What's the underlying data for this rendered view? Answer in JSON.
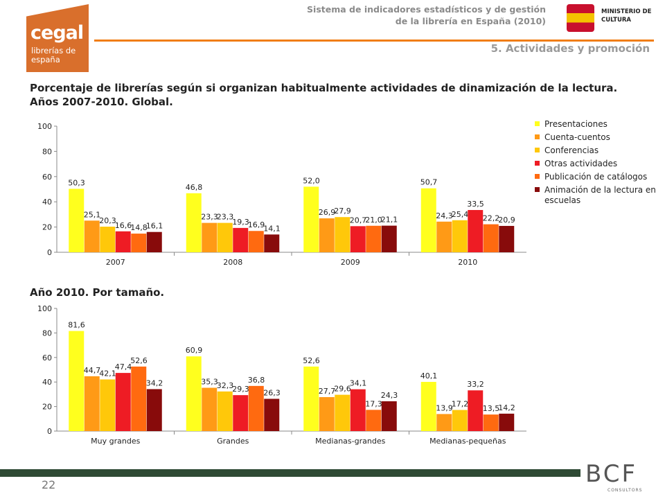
{
  "header": {
    "logo_name": "cegal",
    "logo_sub": "librerías de españa",
    "system_line1": "Sistema de indicadores estadísticos y de gestión",
    "system_line2": "de la librería en España (2010)",
    "ministry": "MINISTERIO DE CULTURA",
    "section": "5. Actividades y promoción"
  },
  "footer": {
    "page": "22",
    "brand": "BCF",
    "brand_sub": "CONSULTORS"
  },
  "series_colors": [
    "#ffff1e",
    "#ff9a16",
    "#ffc80a",
    "#ee1c24",
    "#ff6a10",
    "#880b0b"
  ],
  "chart_data": [
    {
      "type": "bar",
      "title": "Porcentaje de librerías según si organizan habitualmente actividades de dinamización de la lectura. Años 2007-2010. Global.",
      "categories": [
        "2007",
        "2008",
        "2009",
        "2010"
      ],
      "ylim": [
        0,
        100
      ],
      "yticks": [
        "0",
        "20",
        "40",
        "60",
        "80",
        "100"
      ],
      "grid": false,
      "legend_position": "right",
      "series": [
        {
          "name": "Presentaciones",
          "values": [
            50.3,
            46.8,
            52.0,
            50.7
          ],
          "labels": [
            "50,3",
            "46,8",
            "52,0",
            "50,7"
          ]
        },
        {
          "name": "Cuenta-cuentos",
          "values": [
            25.1,
            23.3,
            26.9,
            24.3
          ],
          "labels": [
            "25,1",
            "23,3",
            "26,9",
            "24,3"
          ]
        },
        {
          "name": "Conferencias",
          "values": [
            20.3,
            23.3,
            27.9,
            25.4
          ],
          "labels": [
            "20,3",
            "23,3",
            "27,9",
            "25,4"
          ]
        },
        {
          "name": "Otras actividades",
          "values": [
            16.6,
            19.3,
            20.7,
            33.5
          ],
          "labels": [
            "16,6",
            "19,3",
            "20,7",
            "33,5"
          ]
        },
        {
          "name": "Publicación de catálogos",
          "values": [
            14.8,
            16.9,
            21.0,
            22.2
          ],
          "labels": [
            "14,8",
            "16,9",
            "21,0",
            "22,2"
          ]
        },
        {
          "name": "Animación de la lectura en escuelas",
          "values": [
            16.1,
            14.1,
            21.1,
            20.9
          ],
          "labels": [
            "16,1",
            "14,1",
            "21,1",
            "20,9"
          ]
        }
      ]
    },
    {
      "type": "bar",
      "title": "Año 2010. Por tamaño.",
      "categories": [
        "Muy grandes",
        "Grandes",
        "Medianas-grandes",
        "Medianas-pequeñas"
      ],
      "ylim": [
        0,
        100
      ],
      "yticks": [
        "0",
        "20",
        "40",
        "60",
        "80",
        "100"
      ],
      "grid": false,
      "series": [
        {
          "values": [
            81.6,
            60.9,
            52.6,
            40.1
          ],
          "labels": [
            "81,6",
            "60,9",
            "52,6",
            "40,1"
          ]
        },
        {
          "values": [
            44.7,
            35.3,
            27.7,
            13.9
          ],
          "labels": [
            "44,7",
            "35,3",
            "27,7",
            "13,9"
          ]
        },
        {
          "values": [
            42.1,
            32.3,
            29.6,
            17.2
          ],
          "labels": [
            "42,1",
            "32,3",
            "29,6",
            "17,2"
          ]
        },
        {
          "values": [
            47.4,
            29.3,
            34.1,
            33.2
          ],
          "labels": [
            "47,4",
            "29,3",
            "34,1",
            "33,2"
          ]
        },
        {
          "values": [
            52.6,
            36.8,
            17.3,
            13.5
          ],
          "labels": [
            "52,6",
            "36,8",
            "17,3",
            "13,5"
          ]
        },
        {
          "values": [
            34.2,
            26.3,
            24.3,
            14.2
          ],
          "labels": [
            "34,2",
            "26,3",
            "24,3",
            "14,2"
          ]
        }
      ]
    }
  ]
}
